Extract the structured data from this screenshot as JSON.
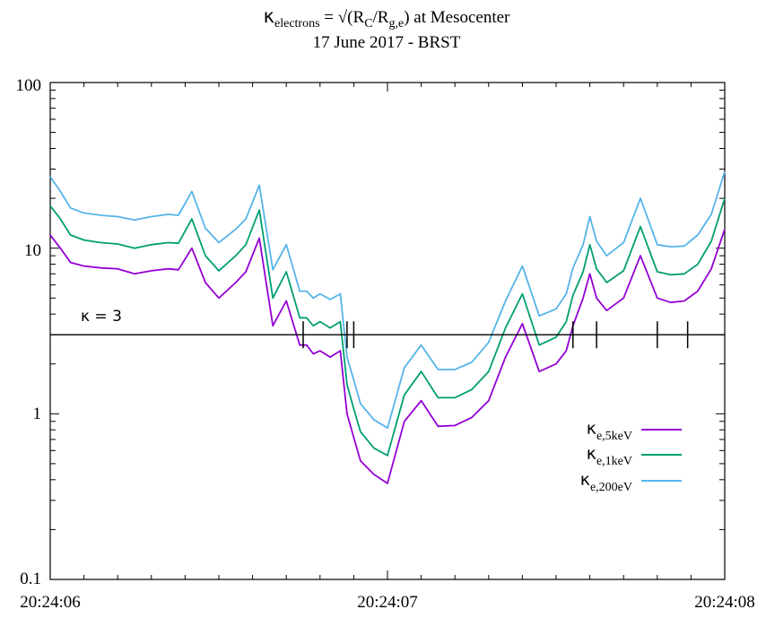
{
  "chart_data": {
    "type": "line",
    "title": {
      "kappa": "κ",
      "sub_electrons": "electrons",
      "eq": " = √(R",
      "sub_C": "C",
      "slash": "/R",
      "sub_ge": "g,e",
      "tail": ") at Mesocenter"
    },
    "subtitle": "17 June 2017 - BRST",
    "x_tick_labels": [
      "20:24:06",
      "20:24:07",
      "20:24:08"
    ],
    "xlim": [
      0,
      2
    ],
    "y_tick_labels": [
      "0.1",
      "1",
      "10",
      "100"
    ],
    "ylim": [
      0.1,
      100
    ],
    "y_scale": "log",
    "grid": false,
    "legend_position": "right",
    "colors": {
      "kappa_5keV": "#9400d3",
      "kappa_1keV": "#009e73",
      "kappa_200eV": "#56b4e9",
      "reference": "#000000"
    },
    "reference_line": {
      "value": 3,
      "label": "κ = 3"
    },
    "crossing_markers_x": [
      0.75,
      0.88,
      0.9,
      1.55,
      1.62,
      1.8,
      1.89
    ],
    "series": [
      {
        "key": "kappa_5keV",
        "legend": {
          "kappa": "κ",
          "sub": "e,5keV"
        },
        "x": [
          0,
          0.03,
          0.06,
          0.1,
          0.15,
          0.2,
          0.25,
          0.3,
          0.35,
          0.38,
          0.42,
          0.46,
          0.5,
          0.55,
          0.58,
          0.62,
          0.66,
          0.7,
          0.74,
          0.76,
          0.78,
          0.8,
          0.83,
          0.86,
          0.88,
          0.9,
          0.92,
          0.96,
          1.0,
          1.05,
          1.1,
          1.15,
          1.2,
          1.25,
          1.3,
          1.35,
          1.4,
          1.45,
          1.5,
          1.53,
          1.55,
          1.58,
          1.6,
          1.62,
          1.65,
          1.7,
          1.75,
          1.8,
          1.84,
          1.88,
          1.92,
          1.96,
          2.0
        ],
        "y": [
          12,
          10.0,
          8.2,
          7.8,
          7.6,
          7.5,
          7.0,
          7.3,
          7.5,
          7.4,
          10.0,
          6.2,
          5.0,
          6.2,
          7.2,
          11.5,
          3.4,
          4.8,
          2.6,
          2.6,
          2.3,
          2.4,
          2.2,
          2.4,
          1.0,
          0.72,
          0.52,
          0.43,
          0.38,
          0.9,
          1.2,
          0.84,
          0.85,
          0.95,
          1.2,
          2.2,
          3.5,
          1.8,
          2.0,
          2.4,
          3.4,
          5.0,
          7.0,
          5.0,
          4.2,
          5.0,
          9.0,
          5.0,
          4.7,
          4.8,
          5.5,
          7.5,
          13.0
        ]
      },
      {
        "key": "kappa_1keV",
        "legend": {
          "kappa": "κ",
          "sub": "e,1keV"
        },
        "x": [
          0,
          0.03,
          0.06,
          0.1,
          0.15,
          0.2,
          0.25,
          0.3,
          0.35,
          0.38,
          0.42,
          0.46,
          0.5,
          0.55,
          0.58,
          0.62,
          0.66,
          0.7,
          0.74,
          0.76,
          0.78,
          0.8,
          0.83,
          0.86,
          0.88,
          0.9,
          0.92,
          0.96,
          1.0,
          1.05,
          1.1,
          1.15,
          1.2,
          1.25,
          1.3,
          1.35,
          1.4,
          1.45,
          1.5,
          1.53,
          1.55,
          1.58,
          1.6,
          1.62,
          1.65,
          1.7,
          1.75,
          1.8,
          1.84,
          1.88,
          1.92,
          1.96,
          2.0
        ],
        "y": [
          18,
          15.0,
          12.0,
          11.2,
          10.8,
          10.6,
          10.0,
          10.5,
          10.8,
          10.7,
          15.0,
          9.0,
          7.3,
          9.0,
          10.5,
          17.0,
          5.0,
          7.2,
          3.8,
          3.8,
          3.4,
          3.6,
          3.3,
          3.6,
          1.5,
          1.07,
          0.78,
          0.62,
          0.56,
          1.3,
          1.8,
          1.25,
          1.25,
          1.4,
          1.8,
          3.3,
          5.3,
          2.6,
          2.9,
          3.6,
          5.2,
          7.2,
          10.5,
          7.5,
          6.2,
          7.3,
          13.5,
          7.2,
          6.9,
          7.0,
          8.0,
          11.0,
          20.0
        ]
      },
      {
        "key": "kappa_200eV",
        "legend": {
          "kappa": "κ",
          "sub": "e,200eV"
        },
        "x": [
          0,
          0.03,
          0.06,
          0.1,
          0.15,
          0.2,
          0.25,
          0.3,
          0.35,
          0.38,
          0.42,
          0.46,
          0.5,
          0.55,
          0.58,
          0.62,
          0.66,
          0.7,
          0.74,
          0.76,
          0.78,
          0.8,
          0.83,
          0.86,
          0.88,
          0.9,
          0.92,
          0.96,
          1.0,
          1.05,
          1.1,
          1.15,
          1.2,
          1.25,
          1.3,
          1.35,
          1.4,
          1.45,
          1.5,
          1.53,
          1.55,
          1.58,
          1.6,
          1.62,
          1.65,
          1.7,
          1.75,
          1.8,
          1.84,
          1.88,
          1.92,
          1.96,
          2.0
        ],
        "y": [
          27,
          22.0,
          17.5,
          16.3,
          15.8,
          15.5,
          14.8,
          15.5,
          16.0,
          15.8,
          22.0,
          13.2,
          10.8,
          13.0,
          15.0,
          24.0,
          7.4,
          10.5,
          5.5,
          5.5,
          5.0,
          5.3,
          4.9,
          5.3,
          2.2,
          1.6,
          1.15,
          0.92,
          0.82,
          1.9,
          2.6,
          1.85,
          1.85,
          2.05,
          2.7,
          4.8,
          7.8,
          3.9,
          4.3,
          5.3,
          7.6,
          10.5,
          15.5,
          11.0,
          9.0,
          10.8,
          20.0,
          10.5,
          10.2,
          10.3,
          12.0,
          16.0,
          29.0
        ]
      }
    ]
  }
}
